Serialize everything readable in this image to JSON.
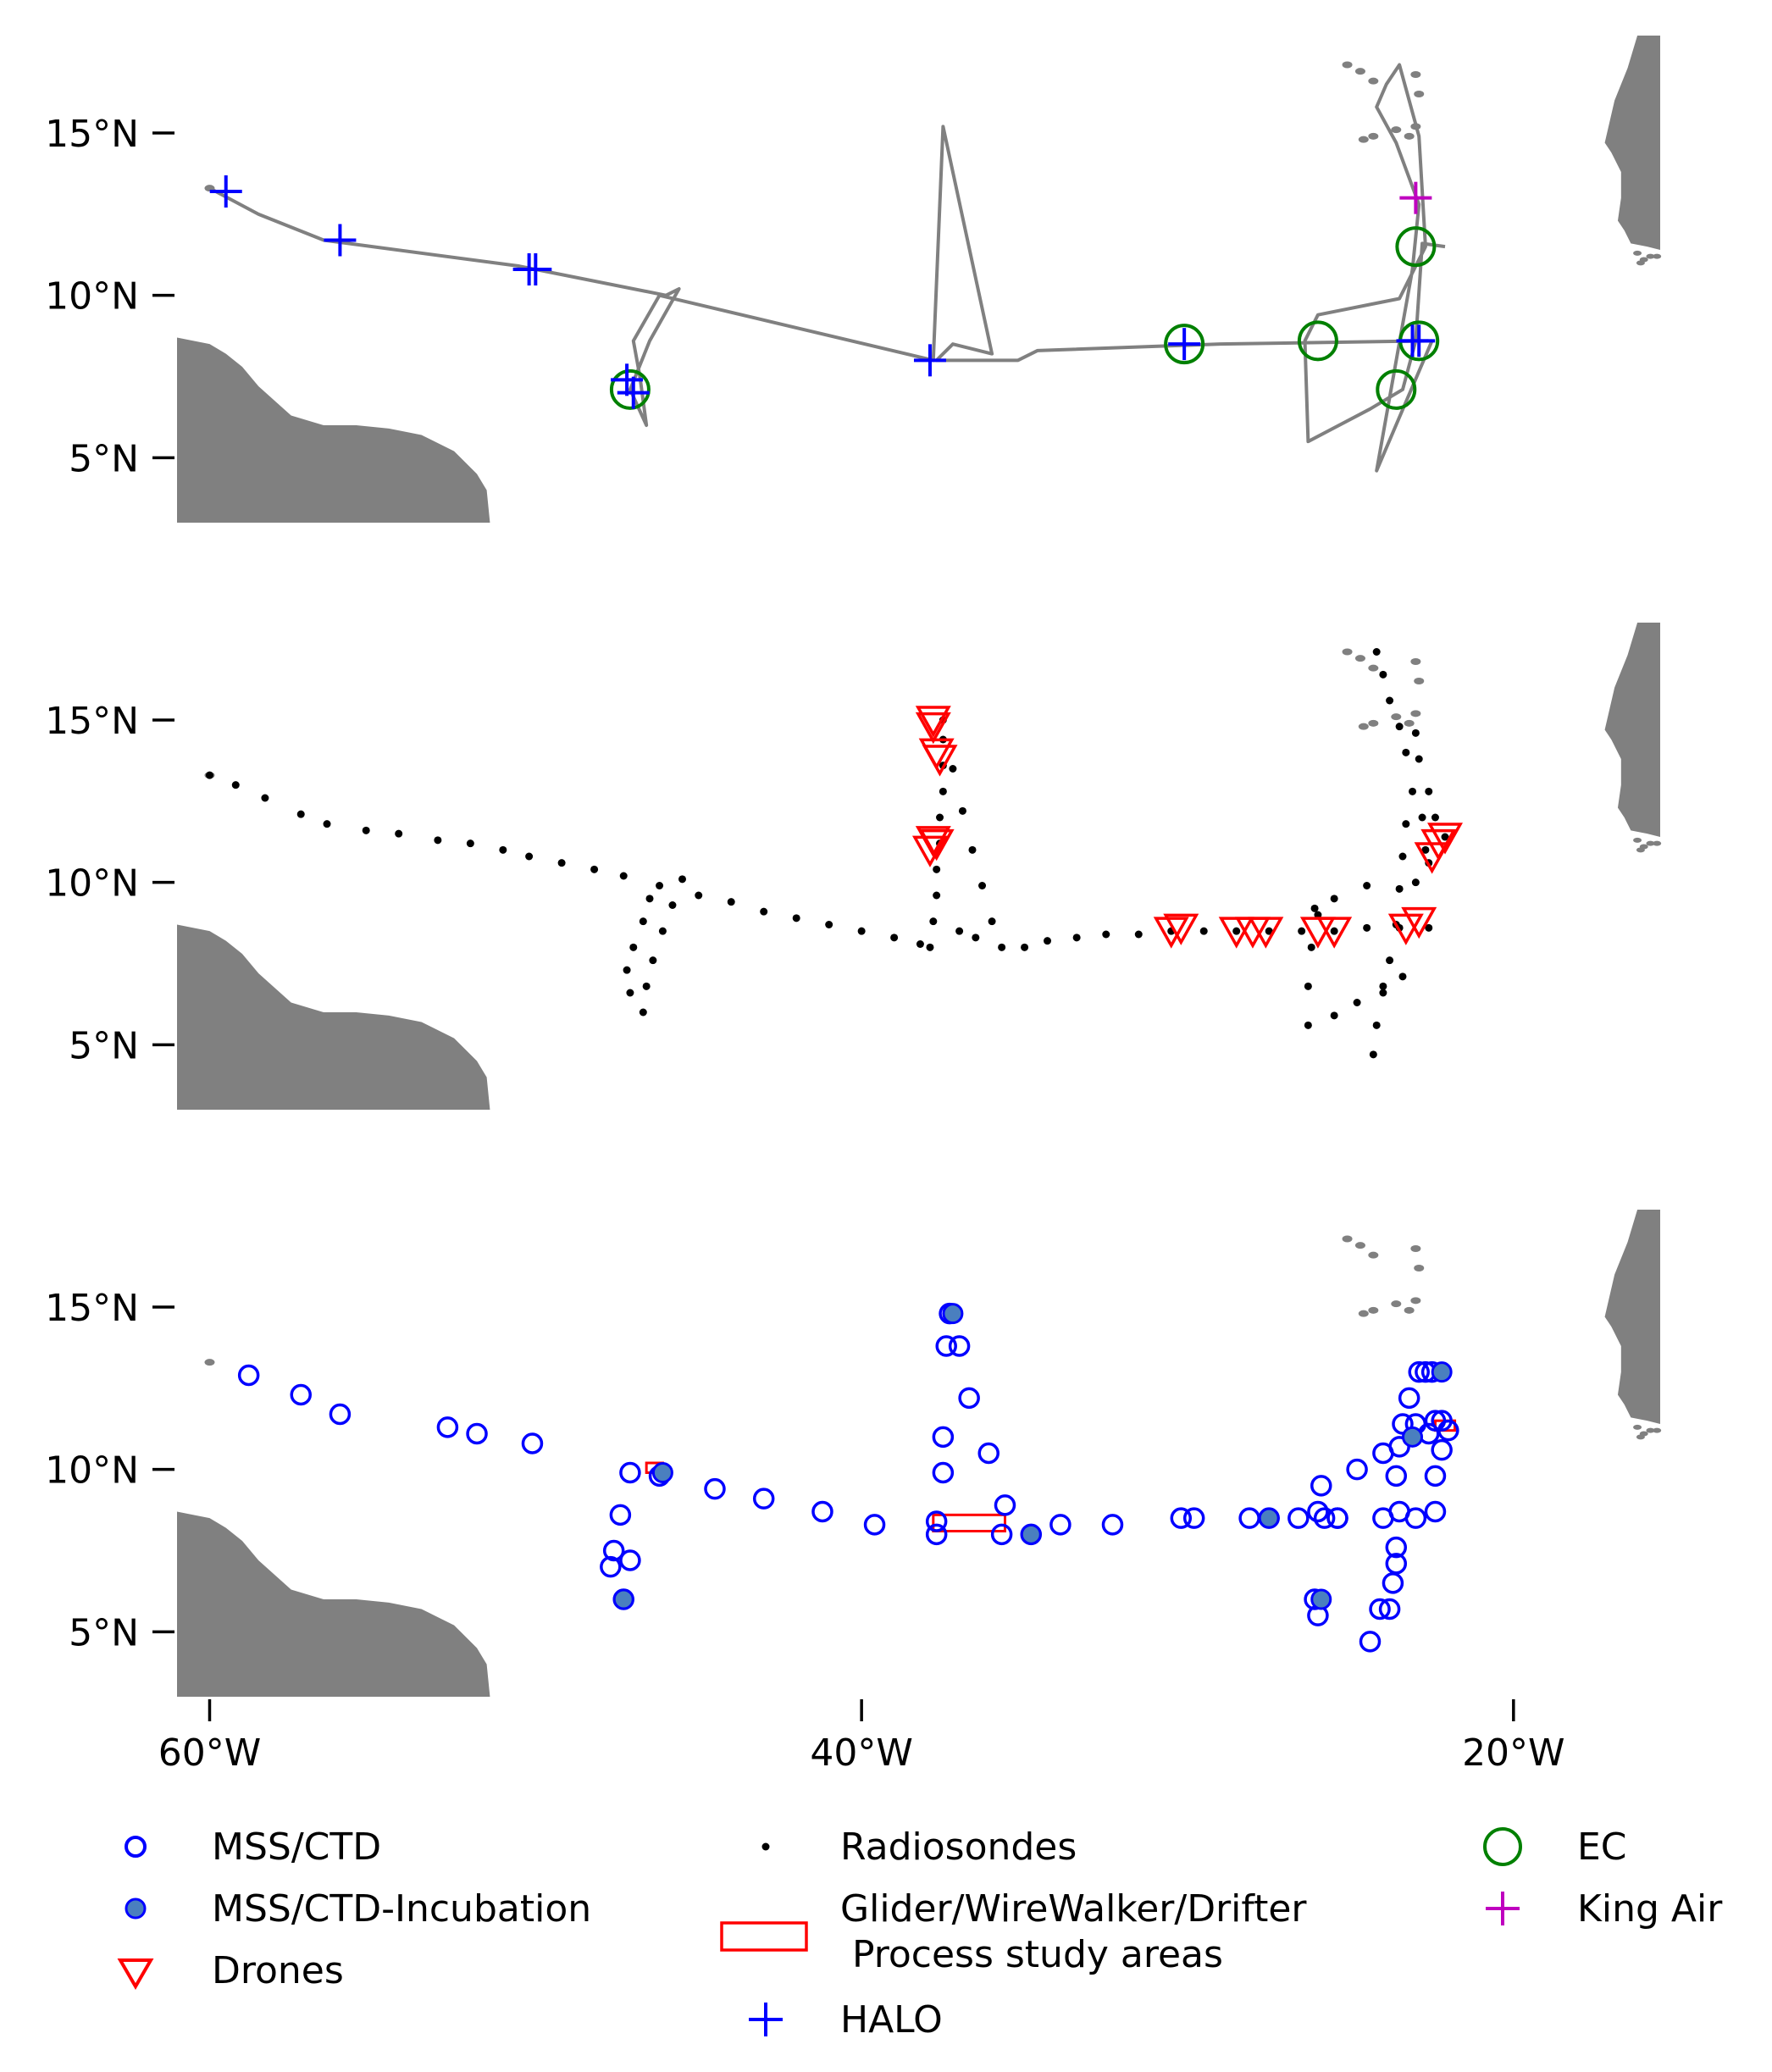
{
  "map": {
    "panels": [
      {
        "id": "flights",
        "layers": [
          "ship_track",
          "EC",
          "HALO",
          "King Air"
        ]
      },
      {
        "id": "atmosphere",
        "layers": [
          "Radiosondes",
          "Drones"
        ]
      },
      {
        "id": "ocean",
        "layers": [
          "MSS/CTD",
          "MSS/CTD-Incubation",
          "Glider/WireWalker/Drifter\n Process study areas"
        ]
      }
    ],
    "lat_ticks": [
      "15°N",
      "10°N",
      "5°N"
    ],
    "lon_ticks": [
      "60°W",
      "40°W",
      "20°W"
    ],
    "lon_range": [
      -61,
      -15.5
    ],
    "lat_range": [
      3,
      18
    ]
  },
  "legend": {
    "col1": [
      "MSS/CTD",
      "MSS/CTD-Incubation",
      "Drones"
    ],
    "col2": [
      "Radiosondes",
      "Glider/WireWalker/Drifter",
      " Process study areas",
      "HALO"
    ],
    "col3": [
      "EC",
      "King Air"
    ]
  },
  "colors": {
    "land": "#808080",
    "track": "#808080",
    "mss_ctd": "#0000ff",
    "incubation_fill": "#4a7fbf",
    "drones": "#ff0000",
    "radiosondes": "#000000",
    "process_areas": "#ff0000",
    "halo": "#0000ff",
    "ec": "#008000",
    "king_air": "#bf00bf"
  },
  "icons": {
    "mss_ctd": "open-circle-icon",
    "incubation": "filled-circle-icon",
    "drones": "down-triangle-icon",
    "radiosondes": "dot-icon",
    "process_areas": "rectangle-icon",
    "halo": "plus-icon",
    "ec": "large-open-circle-icon",
    "king_air": "plus-icon"
  },
  "features": {
    "ship_track": [
      [
        -60,
        13.3
      ],
      [
        -58.5,
        12.5
      ],
      [
        -56.5,
        11.7
      ],
      [
        -50.5,
        10.9
      ],
      [
        -46,
        10.0
      ],
      [
        -45.6,
        10.2
      ],
      [
        -46.5,
        8.6
      ],
      [
        -47.1,
        7.1
      ],
      [
        -46.6,
        6.0
      ],
      [
        -46.8,
        7.5
      ],
      [
        -47.0,
        8.6
      ],
      [
        -46.2,
        10.0
      ],
      [
        -37.8,
        8.0
      ],
      [
        -37.5,
        15.2
      ],
      [
        -36.0,
        8.2
      ],
      [
        -37.2,
        8.5
      ],
      [
        -37.7,
        8.0
      ],
      [
        -35.2,
        8.0
      ],
      [
        -34.6,
        8.3
      ],
      [
        -29.0,
        8.5
      ],
      [
        -22.5,
        8.6
      ],
      [
        -24.2,
        4.6
      ],
      [
        -23.1,
        10.8
      ],
      [
        -22.9,
        12.8
      ],
      [
        -23.6,
        14.7
      ],
      [
        -24.2,
        15.8
      ],
      [
        -23.9,
        16.5
      ],
      [
        -23.5,
        17.1
      ],
      [
        -22.9,
        14.9
      ],
      [
        -22.7,
        11.5
      ],
      [
        -23.5,
        9.9
      ],
      [
        -26.0,
        9.4
      ],
      [
        -26.4,
        8.6
      ],
      [
        -26.3,
        5.5
      ],
      [
        -24.4,
        6.5
      ],
      [
        -23.4,
        7.1
      ],
      [
        -23.0,
        8.6
      ],
      [
        -22.8,
        11.6
      ],
      [
        -22.1,
        11.5
      ]
    ],
    "EC": [
      [
        -47.1,
        7.1
      ],
      [
        -30.1,
        8.5
      ],
      [
        -26.0,
        8.6
      ],
      [
        -23.6,
        7.1
      ],
      [
        -22.9,
        8.6
      ],
      [
        -23.0,
        11.5
      ]
    ],
    "HALO": [
      [
        -59.5,
        13.2
      ],
      [
        -56.0,
        11.7
      ],
      [
        -50.2,
        10.8
      ],
      [
        -50.0,
        10.8
      ],
      [
        -47.0,
        7.0
      ],
      [
        -47.2,
        7.4
      ],
      [
        -37.9,
        8.0
      ],
      [
        -30.1,
        8.5
      ],
      [
        -22.9,
        8.6
      ],
      [
        -23.1,
        8.6
      ]
    ],
    "King_Air": [
      [
        -23.0,
        13.0
      ]
    ],
    "Drones": [
      [
        -37.8,
        15.0
      ],
      [
        -37.8,
        14.8
      ],
      [
        -37.6,
        13.8
      ],
      [
        -37.7,
        14.0
      ],
      [
        -37.8,
        11.3
      ],
      [
        -37.9,
        11.0
      ],
      [
        -37.7,
        11.2
      ],
      [
        -30.2,
        8.6
      ],
      [
        -30.5,
        8.5
      ],
      [
        -28.5,
        8.5
      ],
      [
        -28.0,
        8.5
      ],
      [
        -27.6,
        8.5
      ],
      [
        -26.0,
        8.5
      ],
      [
        -25.5,
        8.5
      ],
      [
        -23.3,
        8.6
      ],
      [
        -22.9,
        8.8
      ],
      [
        -22.1,
        11.4
      ],
      [
        -22.3,
        11.2
      ],
      [
        -22.5,
        10.8
      ]
    ],
    "MSS_CTD": [
      [
        -58.8,
        12.9
      ],
      [
        -57.2,
        12.3
      ],
      [
        -56.0,
        11.7
      ],
      [
        -52.7,
        11.3
      ],
      [
        -51.8,
        11.1
      ],
      [
        -50.1,
        10.8
      ],
      [
        -47.1,
        9.9
      ],
      [
        -46.2,
        9.8
      ],
      [
        -47.4,
        8.6
      ],
      [
        -47.6,
        7.5
      ],
      [
        -47.7,
        7.0
      ],
      [
        -47.1,
        7.2
      ],
      [
        -47.3,
        6.0
      ],
      [
        -44.5,
        9.4
      ],
      [
        -43.0,
        9.1
      ],
      [
        -41.2,
        8.7
      ],
      [
        -39.6,
        8.3
      ],
      [
        -37.7,
        8.4
      ],
      [
        -37.7,
        8.0
      ],
      [
        -37.5,
        9.9
      ],
      [
        -37.5,
        11.0
      ],
      [
        -36.7,
        12.2
      ],
      [
        -36.1,
        10.5
      ],
      [
        -37.4,
        13.8
      ],
      [
        -37.0,
        13.8
      ],
      [
        -37.3,
        14.8
      ],
      [
        -35.6,
        8.9
      ],
      [
        -35.7,
        8.0
      ],
      [
        -34.8,
        8.0
      ],
      [
        -33.9,
        8.3
      ],
      [
        -32.3,
        8.3
      ],
      [
        -30.2,
        8.5
      ],
      [
        -29.8,
        8.5
      ],
      [
        -28.1,
        8.5
      ],
      [
        -27.5,
        8.5
      ],
      [
        -26.6,
        8.5
      ],
      [
        -25.8,
        8.5
      ],
      [
        -25.4,
        8.5
      ],
      [
        -26.0,
        8.7
      ],
      [
        -25.4,
        8.5
      ],
      [
        -25.9,
        9.5
      ],
      [
        -24.8,
        10.0
      ],
      [
        -24.0,
        10.5
      ],
      [
        -23.5,
        10.7
      ],
      [
        -23.6,
        9.8
      ],
      [
        -23.5,
        8.7
      ],
      [
        -22.4,
        8.7
      ],
      [
        -24.0,
        8.5
      ],
      [
        -23.0,
        8.5
      ],
      [
        -22.4,
        9.8
      ],
      [
        -26.1,
        6.0
      ],
      [
        -26.0,
        5.5
      ],
      [
        -23.6,
        7.6
      ],
      [
        -23.6,
        7.1
      ],
      [
        -23.7,
        6.5
      ],
      [
        -24.1,
        5.7
      ],
      [
        -23.8,
        5.7
      ],
      [
        -24.4,
        4.7
      ],
      [
        -23.0,
        11.4
      ],
      [
        -22.4,
        11.5
      ],
      [
        -22.2,
        11.5
      ],
      [
        -22.6,
        11.1
      ],
      [
        -23.2,
        12.2
      ],
      [
        -22.9,
        13.0
      ],
      [
        -22.7,
        13.0
      ],
      [
        -22.5,
        13.0
      ],
      [
        -23.4,
        11.4
      ],
      [
        -22.0,
        11.2
      ],
      [
        -22.2,
        10.6
      ]
    ],
    "Incubation": [
      [
        -37.2,
        14.8
      ],
      [
        -46.1,
        9.9
      ],
      [
        -47.3,
        6.0
      ],
      [
        -34.8,
        8.0
      ],
      [
        -27.5,
        8.5
      ],
      [
        -25.9,
        6.0
      ],
      [
        -23.1,
        11.0
      ],
      [
        -22.2,
        13.0
      ]
    ],
    "Radiosondes": [
      [
        -60.0,
        13.3
      ],
      [
        -59.2,
        13.0
      ],
      [
        -58.3,
        12.6
      ],
      [
        -57.2,
        12.1
      ],
      [
        -56.4,
        11.8
      ],
      [
        -55.2,
        11.6
      ],
      [
        -54.2,
        11.5
      ],
      [
        -53.0,
        11.3
      ],
      [
        -52.0,
        11.2
      ],
      [
        -51.0,
        11.0
      ],
      [
        -50.2,
        10.8
      ],
      [
        -49.2,
        10.6
      ],
      [
        -48.2,
        10.4
      ],
      [
        -47.3,
        10.2
      ],
      [
        -46.2,
        9.9
      ],
      [
        -45.5,
        10.1
      ],
      [
        -45.8,
        9.3
      ],
      [
        -46.1,
        8.5
      ],
      [
        -46.4,
        7.6
      ],
      [
        -46.6,
        6.8
      ],
      [
        -46.7,
        6.0
      ],
      [
        -47.1,
        6.6
      ],
      [
        -47.2,
        7.3
      ],
      [
        -47.0,
        8.0
      ],
      [
        -46.7,
        8.8
      ],
      [
        -46.5,
        9.5
      ],
      [
        -45.0,
        9.6
      ],
      [
        -44.0,
        9.4
      ],
      [
        -43.0,
        9.1
      ],
      [
        -42.0,
        8.9
      ],
      [
        -41.0,
        8.7
      ],
      [
        -40.0,
        8.5
      ],
      [
        -39.0,
        8.3
      ],
      [
        -38.2,
        8.1
      ],
      [
        -37.9,
        8.0
      ],
      [
        -37.8,
        8.8
      ],
      [
        -37.7,
        9.6
      ],
      [
        -37.7,
        10.4
      ],
      [
        -37.6,
        11.2
      ],
      [
        -37.6,
        12.0
      ],
      [
        -37.5,
        12.8
      ],
      [
        -37.5,
        13.6
      ],
      [
        -37.5,
        14.4
      ],
      [
        -37.5,
        15.0
      ],
      [
        -37.2,
        13.5
      ],
      [
        -36.9,
        12.2
      ],
      [
        -36.6,
        11.0
      ],
      [
        -36.3,
        9.9
      ],
      [
        -36.0,
        8.8
      ],
      [
        -35.7,
        8.0
      ],
      [
        -36.5,
        8.3
      ],
      [
        -37.0,
        8.5
      ],
      [
        -35.0,
        8.0
      ],
      [
        -34.3,
        8.2
      ],
      [
        -33.4,
        8.3
      ],
      [
        -32.5,
        8.4
      ],
      [
        -31.5,
        8.4
      ],
      [
        -30.5,
        8.5
      ],
      [
        -29.5,
        8.5
      ],
      [
        -28.5,
        8.5
      ],
      [
        -27.5,
        8.5
      ],
      [
        -26.5,
        8.5
      ],
      [
        -25.5,
        8.5
      ],
      [
        -24.5,
        8.6
      ],
      [
        -23.5,
        8.6
      ],
      [
        -22.6,
        8.6
      ],
      [
        -26.1,
        9.2
      ],
      [
        -26.2,
        8.0
      ],
      [
        -26.3,
        6.8
      ],
      [
        -26.3,
        5.6
      ],
      [
        -25.5,
        5.9
      ],
      [
        -24.8,
        6.3
      ],
      [
        -24.0,
        6.8
      ],
      [
        -23.4,
        7.1
      ],
      [
        -24.3,
        4.7
      ],
      [
        -24.2,
        5.6
      ],
      [
        -24.0,
        6.6
      ],
      [
        -23.8,
        7.6
      ],
      [
        -23.6,
        8.7
      ],
      [
        -23.5,
        9.8
      ],
      [
        -23.4,
        10.8
      ],
      [
        -23.3,
        11.8
      ],
      [
        -23.1,
        12.8
      ],
      [
        -22.9,
        13.8
      ],
      [
        -23.0,
        14.6
      ],
      [
        -22.8,
        12.0
      ],
      [
        -22.7,
        11.0
      ],
      [
        -23.0,
        10.0
      ],
      [
        -24.5,
        9.9
      ],
      [
        -25.5,
        9.5
      ],
      [
        -26.0,
        9.0
      ],
      [
        -24.2,
        17.1
      ],
      [
        -24.0,
        16.4
      ],
      [
        -23.8,
        15.6
      ],
      [
        -23.5,
        14.8
      ],
      [
        -23.3,
        14.0
      ],
      [
        -22.6,
        12.8
      ],
      [
        -22.4,
        12.0
      ],
      [
        -22.1,
        11.4
      ],
      [
        -22.6,
        10.6
      ]
    ],
    "Process_areas": [
      {
        "lon": -37.8,
        "lat": 8.1,
        "w": 2.2,
        "h": 0.5
      },
      {
        "lon": -46.6,
        "lat": 9.9,
        "w": 0.5,
        "h": 0.3
      },
      {
        "lon": -22.4,
        "lat": 11.2,
        "w": 0.6,
        "h": 0.3
      }
    ],
    "land_south_america": [
      [
        -61,
        3
      ],
      [
        -61,
        8.7
      ],
      [
        -60,
        8.5
      ],
      [
        -59.5,
        8.2
      ],
      [
        -59.0,
        7.8
      ],
      [
        -58.5,
        7.2
      ],
      [
        -57.5,
        6.3
      ],
      [
        -56.5,
        6.0
      ],
      [
        -55.5,
        6.0
      ],
      [
        -54.5,
        5.9
      ],
      [
        -53.5,
        5.7
      ],
      [
        -52.5,
        5.2
      ],
      [
        -51.8,
        4.5
      ],
      [
        -51.5,
        4.0
      ],
      [
        -51.4,
        3.0
      ]
    ],
    "land_africa": [
      [
        -15.5,
        18
      ],
      [
        -16.2,
        18
      ],
      [
        -16.5,
        17.0
      ],
      [
        -16.9,
        16.0
      ],
      [
        -17.2,
        14.7
      ],
      [
        -17.0,
        14.4
      ],
      [
        -16.7,
        13.8
      ],
      [
        -16.7,
        13.0
      ],
      [
        -16.8,
        12.3
      ],
      [
        -16.6,
        12.0
      ],
      [
        -16.4,
        11.6
      ],
      [
        -15.9,
        11.5
      ],
      [
        -15.5,
        11.4
      ],
      [
        -15.5,
        11.0
      ]
    ],
    "islands_cape_verde": [
      [
        -25.1,
        17.1
      ],
      [
        -24.7,
        16.9
      ],
      [
        -24.3,
        16.6
      ],
      [
        -23.0,
        16.8
      ],
      [
        -22.9,
        16.2
      ],
      [
        -23.0,
        15.2
      ],
      [
        -23.6,
        15.1
      ],
      [
        -24.3,
        14.9
      ],
      [
        -24.6,
        14.8
      ],
      [
        -23.2,
        14.9
      ]
    ],
    "islands_bissagos": [
      [
        -16.2,
        11.3
      ],
      [
        -16.0,
        11.1
      ],
      [
        -15.8,
        11.2
      ],
      [
        -16.1,
        11.0
      ],
      [
        -15.6,
        11.2
      ]
    ]
  }
}
